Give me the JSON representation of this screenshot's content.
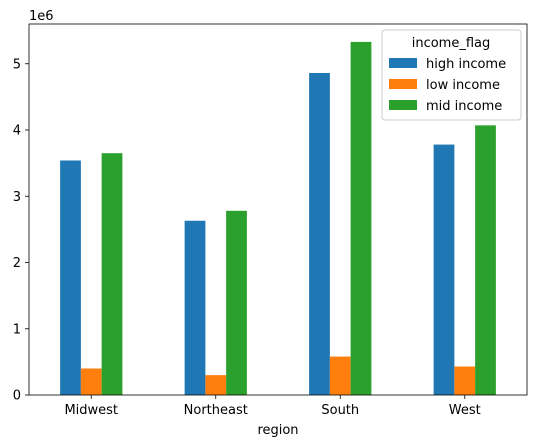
{
  "chart_data": {
    "type": "bar",
    "xlabel": "region",
    "ylabel": "",
    "y_multiplier_label": "1e6",
    "categories": [
      "Midwest",
      "Northeast",
      "South",
      "West"
    ],
    "ylim": [
      0,
      5600000
    ],
    "yticks": [
      0,
      1000000,
      2000000,
      3000000,
      4000000,
      5000000
    ],
    "ytick_labels": [
      "0",
      "1",
      "2",
      "3",
      "4",
      "5"
    ],
    "series": [
      {
        "name": "high income",
        "color": "#1f77b4",
        "values": [
          3540000,
          2630000,
          4860000,
          3780000
        ]
      },
      {
        "name": "low income",
        "color": "#ff7f0e",
        "values": [
          400000,
          300000,
          580000,
          430000
        ]
      },
      {
        "name": "mid income",
        "color": "#2ca02c",
        "values": [
          3650000,
          2780000,
          5330000,
          4070000
        ]
      }
    ],
    "legend": {
      "title": "income_flag",
      "placement": "top-right"
    },
    "grid": false
  }
}
